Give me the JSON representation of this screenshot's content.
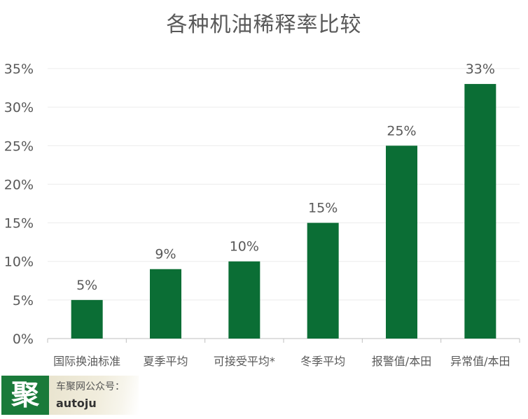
{
  "chart_data": {
    "type": "bar",
    "title": "各种机油稀释率比较",
    "xlabel": "",
    "ylabel": "",
    "categories": [
      "国际换油标准",
      "夏季平均",
      "可接受平均*",
      "冬季平均",
      "报警值/本田",
      "异常值/本田"
    ],
    "values": [
      5,
      9,
      10,
      15,
      25,
      33
    ],
    "data_labels": [
      "5%",
      "9%",
      "10%",
      "15%",
      "25%",
      "33%"
    ],
    "ylim": [
      0,
      35
    ],
    "yticks": [
      0,
      5,
      10,
      15,
      20,
      25,
      30,
      35
    ],
    "ytick_labels": [
      "0%",
      "5%",
      "10%",
      "15%",
      "20%",
      "25%",
      "30%",
      "35%"
    ],
    "grid": true,
    "legend": "none",
    "bar_color": "#0b6e35"
  },
  "watermark": {
    "logo_char": "聚",
    "line1": "车聚网公众号：",
    "line2": "autoju",
    "logo_color": "#1a7a3a"
  }
}
